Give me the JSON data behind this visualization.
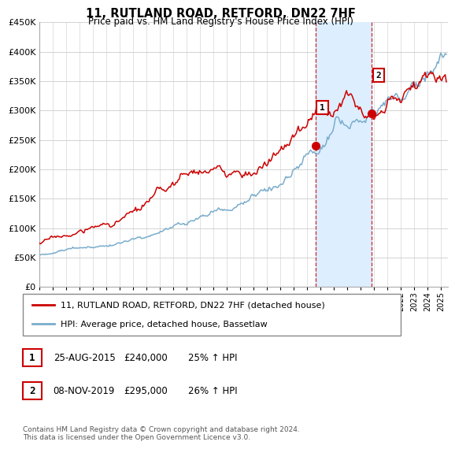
{
  "title": "11, RUTLAND ROAD, RETFORD, DN22 7HF",
  "subtitle": "Price paid vs. HM Land Registry's House Price Index (HPI)",
  "ylim": [
    0,
    450000
  ],
  "yticks": [
    0,
    50000,
    100000,
    150000,
    200000,
    250000,
    300000,
    350000,
    400000,
    450000
  ],
  "ytick_labels": [
    "£0",
    "£50K",
    "£100K",
    "£150K",
    "£200K",
    "£250K",
    "£300K",
    "£350K",
    "£400K",
    "£450K"
  ],
  "xlim_start": 1995.0,
  "xlim_end": 2025.5,
  "sale1_x": 2015.646,
  "sale1_y": 240000,
  "sale2_x": 2019.836,
  "sale2_y": 295000,
  "sale1_label": "1",
  "sale2_label": "2",
  "sale1_date": "25-AUG-2015",
  "sale1_price": "£240,000",
  "sale1_hpi": "25% ↑ HPI",
  "sale2_date": "08-NOV-2019",
  "sale2_price": "£295,000",
  "sale2_hpi": "26% ↑ HPI",
  "line1_color": "#cc0000",
  "line2_color": "#7aadcc",
  "shade_color": "#ddeeff",
  "legend1_label": "11, RUTLAND ROAD, RETFORD, DN22 7HF (detached house)",
  "legend2_label": "HPI: Average price, detached house, Bassetlaw",
  "footer": "Contains HM Land Registry data © Crown copyright and database right 2024.\nThis data is licensed under the Open Government Licence v3.0.",
  "background_color": "#ffffff",
  "grid_color": "#cccccc"
}
